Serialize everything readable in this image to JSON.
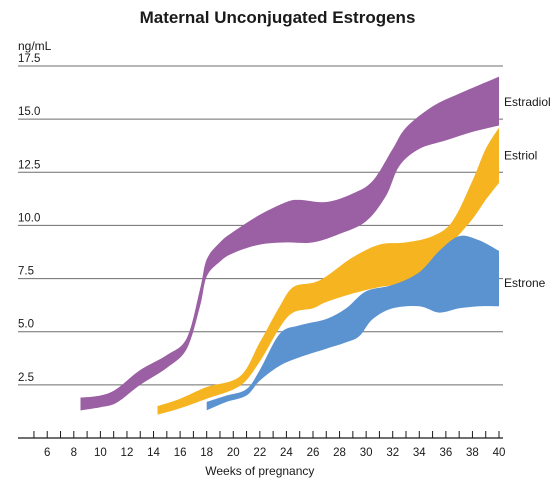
{
  "chart_data": {
    "type": "area",
    "title": "Maternal Unconjugated Estrogens",
    "ylabel": "ng/mL",
    "xlabel": "Weeks of pregnancy",
    "xlim": [
      3.8,
      40.3
    ],
    "ylim": [
      0,
      17.5
    ],
    "x_ticks": [
      6,
      8,
      10,
      12,
      14,
      16,
      18,
      20,
      22,
      24,
      26,
      28,
      30,
      32,
      34,
      36,
      38,
      40
    ],
    "y_ticks": [
      2.5,
      5.0,
      7.5,
      10.0,
      12.5,
      15.0,
      17.5
    ],
    "y_tick_labels": [
      "2.5",
      "5.0",
      "7.5",
      "10.0",
      "12.5",
      "15.0",
      "17.5"
    ],
    "grid": "horizontal",
    "series": [
      {
        "name": "Estradiol",
        "color": "#9b5fa3",
        "upper": [
          [
            8.5,
            1.9
          ],
          [
            10,
            2.0
          ],
          [
            11.2,
            2.3
          ],
          [
            13,
            3.2
          ],
          [
            15,
            3.9
          ],
          [
            16.5,
            4.7
          ],
          [
            17.5,
            7.0
          ],
          [
            18,
            8.4
          ],
          [
            19,
            9.2
          ],
          [
            20,
            9.7
          ],
          [
            22,
            10.5
          ],
          [
            24,
            11.1
          ],
          [
            25,
            11.2
          ],
          [
            27,
            11.1
          ],
          [
            29,
            11.5
          ],
          [
            30.5,
            12.1
          ],
          [
            32,
            13.6
          ],
          [
            33,
            14.6
          ],
          [
            35,
            15.6
          ],
          [
            37,
            16.2
          ],
          [
            40,
            17.0
          ]
        ],
        "lower": [
          [
            8.5,
            1.3
          ],
          [
            10,
            1.45
          ],
          [
            11.2,
            1.65
          ],
          [
            13,
            2.5
          ],
          [
            15,
            3.3
          ],
          [
            16.5,
            4.2
          ],
          [
            17.5,
            6.2
          ],
          [
            18,
            7.6
          ],
          [
            19,
            8.3
          ],
          [
            20,
            8.7
          ],
          [
            22,
            9.1
          ],
          [
            24,
            9.2
          ],
          [
            26,
            9.2
          ],
          [
            28,
            9.6
          ],
          [
            30,
            10.2
          ],
          [
            31.5,
            11.4
          ],
          [
            32.5,
            12.8
          ],
          [
            34,
            13.6
          ],
          [
            36,
            14.0
          ],
          [
            38,
            14.4
          ],
          [
            40,
            14.7
          ]
        ]
      },
      {
        "name": "Estriol",
        "color": "#f6b520",
        "upper": [
          [
            14.3,
            1.5
          ],
          [
            16,
            1.85
          ],
          [
            18,
            2.4
          ],
          [
            20.5,
            2.9
          ],
          [
            22,
            4.5
          ],
          [
            23.5,
            6.2
          ],
          [
            24.5,
            7.1
          ],
          [
            26,
            7.3
          ],
          [
            27,
            7.6
          ],
          [
            29,
            8.5
          ],
          [
            31,
            9.1
          ],
          [
            33,
            9.2
          ],
          [
            35,
            9.5
          ],
          [
            36.5,
            10.2
          ],
          [
            38,
            12.1
          ],
          [
            39,
            13.6
          ],
          [
            40,
            14.6
          ]
        ],
        "lower": [
          [
            14.3,
            1.1
          ],
          [
            16,
            1.4
          ],
          [
            18,
            1.85
          ],
          [
            20.5,
            2.45
          ],
          [
            22,
            3.6
          ],
          [
            23.5,
            5.2
          ],
          [
            24.5,
            5.9
          ],
          [
            26,
            6.1
          ],
          [
            27,
            6.4
          ],
          [
            29,
            6.8
          ],
          [
            31,
            7.1
          ],
          [
            33,
            7.3
          ],
          [
            35,
            8.0
          ],
          [
            36.5,
            9.2
          ],
          [
            38,
            10.3
          ],
          [
            39,
            11.2
          ],
          [
            40,
            12.0
          ]
        ]
      },
      {
        "name": "Estrone",
        "color": "#5b93d1",
        "upper": [
          [
            18,
            1.7
          ],
          [
            19.5,
            2.0
          ],
          [
            21,
            2.3
          ],
          [
            22,
            3.2
          ],
          [
            23.5,
            4.9
          ],
          [
            25,
            5.3
          ],
          [
            27,
            5.6
          ],
          [
            28.5,
            6.1
          ],
          [
            30,
            6.9
          ],
          [
            32,
            7.2
          ],
          [
            34,
            7.8
          ],
          [
            35.5,
            8.8
          ],
          [
            37,
            9.5
          ],
          [
            38.5,
            9.3
          ],
          [
            40,
            8.8
          ]
        ],
        "lower": [
          [
            18,
            1.3
          ],
          [
            19.5,
            1.7
          ],
          [
            21,
            2.0
          ],
          [
            22,
            2.7
          ],
          [
            23.5,
            3.4
          ],
          [
            25,
            3.8
          ],
          [
            27,
            4.2
          ],
          [
            28.5,
            4.5
          ],
          [
            29.5,
            4.8
          ],
          [
            30.5,
            5.6
          ],
          [
            32,
            6.1
          ],
          [
            34,
            6.2
          ],
          [
            35.5,
            5.9
          ],
          [
            37,
            6.1
          ],
          [
            38.5,
            6.2
          ],
          [
            40,
            6.2
          ]
        ]
      }
    ]
  }
}
